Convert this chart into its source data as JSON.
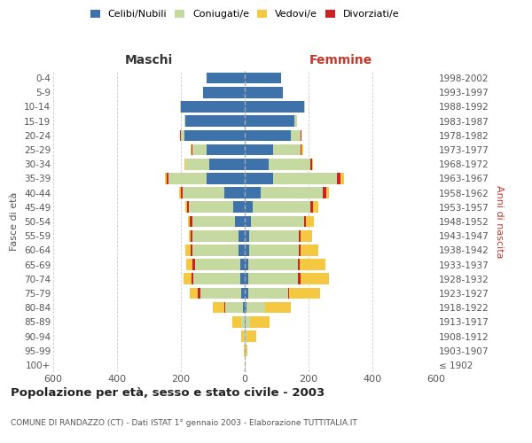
{
  "age_groups": [
    "100+",
    "95-99",
    "90-94",
    "85-89",
    "80-84",
    "75-79",
    "70-74",
    "65-69",
    "60-64",
    "55-59",
    "50-54",
    "45-49",
    "40-44",
    "35-39",
    "30-34",
    "25-29",
    "20-24",
    "15-19",
    "10-14",
    "5-9",
    "0-4"
  ],
  "birth_years": [
    "≤ 1902",
    "1903-1907",
    "1908-1912",
    "1913-1917",
    "1918-1922",
    "1923-1927",
    "1928-1932",
    "1933-1937",
    "1938-1942",
    "1943-1947",
    "1948-1952",
    "1953-1957",
    "1958-1962",
    "1963-1967",
    "1968-1972",
    "1973-1977",
    "1978-1982",
    "1983-1987",
    "1988-1992",
    "1993-1997",
    "1998-2002"
  ],
  "maschi": {
    "celibe": [
      0,
      0,
      0,
      0,
      5,
      10,
      15,
      15,
      20,
      20,
      30,
      35,
      65,
      120,
      110,
      120,
      190,
      185,
      200,
      130,
      120
    ],
    "coniugato": [
      0,
      0,
      2,
      10,
      55,
      130,
      145,
      140,
      145,
      145,
      135,
      140,
      130,
      120,
      75,
      45,
      10,
      5,
      2,
      0,
      0
    ],
    "vedovo": [
      0,
      2,
      10,
      30,
      35,
      25,
      25,
      20,
      15,
      5,
      5,
      5,
      5,
      5,
      2,
      2,
      0,
      0,
      0,
      0,
      0
    ],
    "divorziato": [
      0,
      0,
      0,
      0,
      5,
      8,
      8,
      8,
      5,
      5,
      8,
      5,
      5,
      5,
      2,
      2,
      2,
      0,
      0,
      0,
      0
    ]
  },
  "femmine": {
    "nubile": [
      0,
      0,
      0,
      2,
      5,
      10,
      12,
      12,
      15,
      15,
      20,
      25,
      50,
      90,
      75,
      90,
      145,
      155,
      185,
      120,
      115
    ],
    "coniugata": [
      0,
      2,
      5,
      15,
      60,
      125,
      155,
      155,
      155,
      155,
      165,
      180,
      195,
      200,
      130,
      85,
      30,
      10,
      5,
      0,
      0
    ],
    "vedova": [
      0,
      5,
      30,
      60,
      80,
      95,
      90,
      80,
      55,
      35,
      25,
      15,
      10,
      10,
      5,
      5,
      2,
      0,
      0,
      0,
      0
    ],
    "divorziata": [
      0,
      0,
      0,
      0,
      0,
      5,
      8,
      5,
      5,
      5,
      8,
      10,
      10,
      10,
      5,
      3,
      2,
      0,
      0,
      0,
      0
    ]
  },
  "colors": {
    "celibe": "#3d72aa",
    "coniugato": "#c5d9a0",
    "vedovo": "#f5c842",
    "divorziato": "#cc2222"
  },
  "xlim": 600,
  "title": "Popolazione per età, sesso e stato civile - 2003",
  "subtitle": "COMUNE DI RANDAZZO (CT) - Dati ISTAT 1° gennaio 2003 - Elaborazione TUTTITALIA.IT",
  "ylabel_left": "Fasce di età",
  "ylabel_right": "Anni di nascita",
  "xlabel_maschi": "Maschi",
  "xlabel_femmine": "Femmine",
  "legend_labels": [
    "Celibi/Nubili",
    "Coniugati/e",
    "Vedovi/e",
    "Divorziati/e"
  ],
  "bg_color": "#ffffff",
  "grid_color": "#cccccc"
}
